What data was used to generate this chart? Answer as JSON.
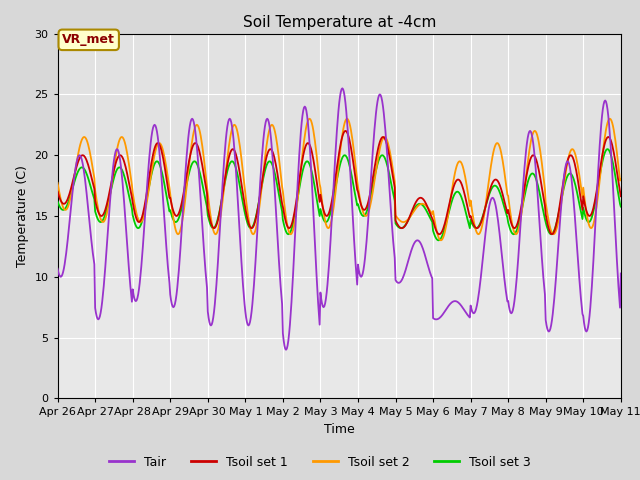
{
  "title": "Soil Temperature at -4cm",
  "xlabel": "Time",
  "ylabel": "Temperature (C)",
  "ylim": [
    0,
    30
  ],
  "xlim": [
    0,
    360
  ],
  "fig_bg_color": "#d8d8d8",
  "plot_bg_color": "#e8e8e8",
  "grid_color": "#ffffff",
  "colors": {
    "Tair": "#9933cc",
    "Tsoil1": "#cc0000",
    "Tsoil2": "#ff9900",
    "Tsoil3": "#00cc00"
  },
  "legend_labels": [
    "Tair",
    "Tsoil set 1",
    "Tsoil set 2",
    "Tsoil set 3"
  ],
  "xtick_labels": [
    "Apr 26",
    "Apr 27",
    "Apr 28",
    "Apr 29",
    "Apr 30",
    "May 1",
    "May 2",
    "May 3",
    "May 4",
    "May 5",
    "May 6",
    "May 7",
    "May 8",
    "May 9",
    "May 10",
    "May 11"
  ],
  "xtick_positions": [
    0,
    24,
    48,
    72,
    96,
    120,
    144,
    168,
    192,
    216,
    240,
    264,
    288,
    312,
    336,
    360
  ],
  "annotation_text": "VR_met",
  "annotation_color": "#8b0000",
  "annotation_bg": "#ffffcc",
  "annotation_edge": "#aa8800"
}
